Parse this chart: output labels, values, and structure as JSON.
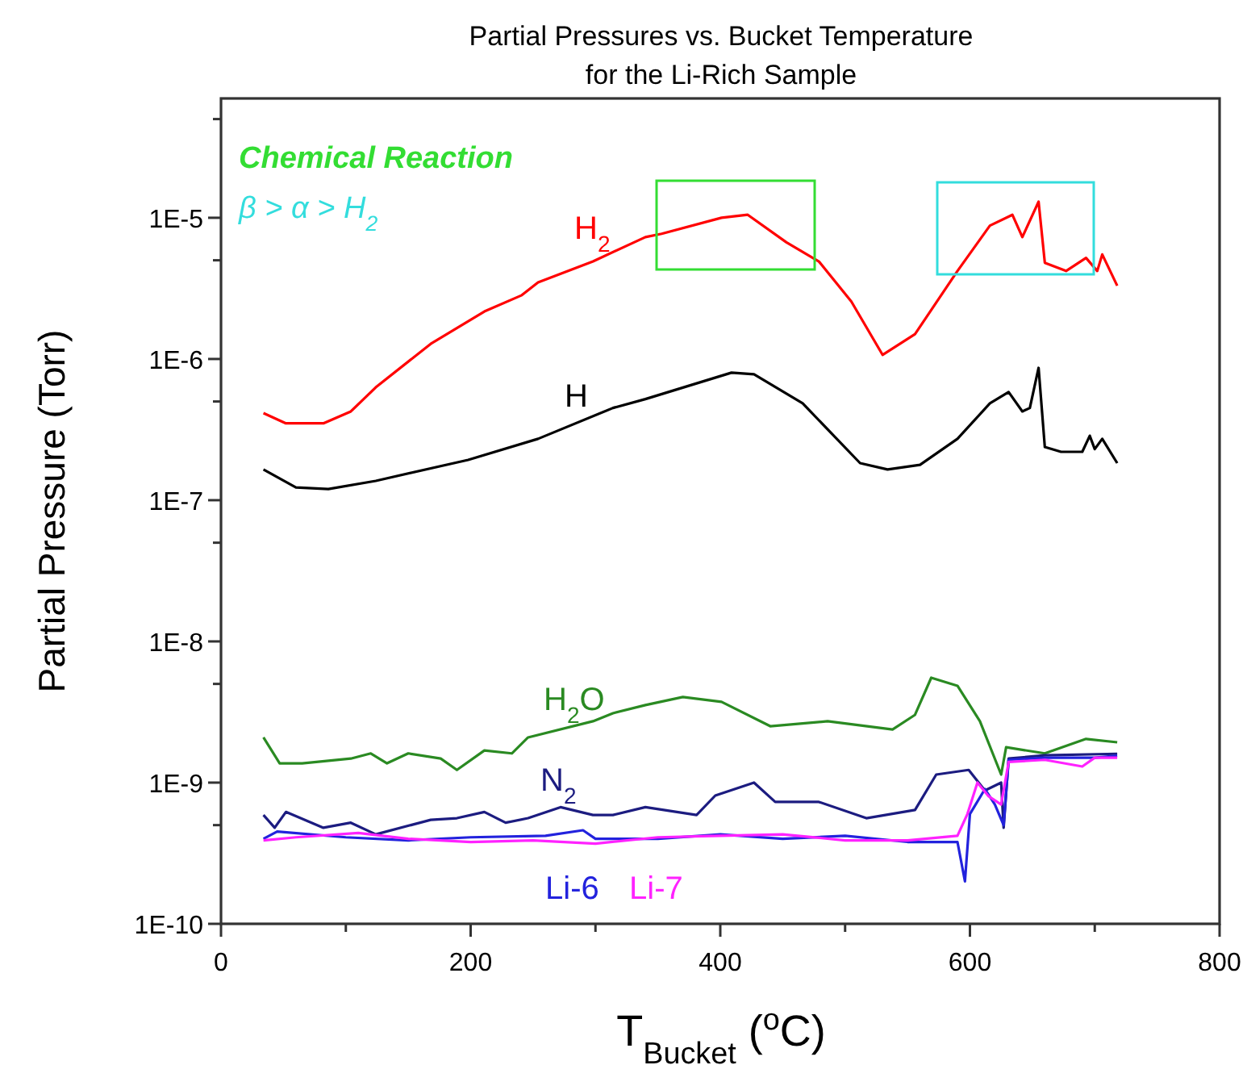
{
  "chart_data": {
    "type": "line",
    "title": "Partial Pressures vs. Bucket Temperature\nfor the Li-Rich Sample",
    "xlabel": "T$_{Bucket}$ ($^{o}$C)",
    "ylabel": "Partial Pressure (Torr)",
    "log": "y",
    "xlim": [
      0,
      800
    ],
    "xticks": [
      0,
      {
        "value": 100,
        "label": null
      },
      200,
      {
        "value": 300,
        "label": null
      },
      400,
      {
        "value": 500,
        "label": null
      },
      600,
      {
        "value": 700,
        "label": null
      },
      800
    ],
    "ylim": [
      1e-10,
      7e-05
    ],
    "yticks": [
      {
        "value": 1e-10,
        "label": "1E-10"
      },
      {
        "value": 5e-10,
        "label": null
      },
      {
        "value": 1e-09,
        "label": "1E-9"
      },
      {
        "value": 5e-09,
        "label": null
      },
      {
        "value": 1e-08,
        "label": "1E-8"
      },
      {
        "value": 5e-08,
        "label": null
      },
      {
        "value": 1e-07,
        "label": "1E-7"
      },
      {
        "value": 5e-07,
        "label": null
      },
      {
        "value": 1e-06,
        "label": "1E-6"
      },
      {
        "value": 5e-06,
        "label": null
      },
      {
        "value": 1e-05,
        "label": "1E-5"
      },
      {
        "value": 5e-05,
        "label": null
      }
    ],
    "annotations": [
      "Chemical Reaction",
      "β > α > H$_{2}$"
    ],
    "series": [
      {
        "name": "H$_{2}$",
        "color": "#ff0000",
        "x": [
          34,
          52,
          82,
          104,
          124,
          168,
          211,
          241,
          254,
          298,
          340,
          353,
          401,
          422,
          453,
          479,
          505,
          530,
          556,
          590,
          616,
          634,
          642,
          655,
          660,
          677,
          693,
          702,
          706,
          718
        ],
        "values": [
          4.14e-07,
          3.5e-07,
          3.5e-07,
          4.25e-07,
          6.3e-07,
          1.28e-06,
          2.17e-06,
          2.83e-06,
          3.49e-06,
          4.91e-06,
          7.3e-06,
          7.7e-06,
          1e-05,
          1.05e-05,
          6.7e-06,
          4.9e-06,
          2.55e-06,
          1.07e-06,
          1.5e-06,
          4.2e-06,
          8.8e-06,
          1.05e-05,
          7.3e-06,
          1.3e-05,
          4.8e-06,
          4.2e-06,
          5.2e-06,
          4.2e-06,
          5.5e-06,
          3.3e-06
        ]
      },
      {
        "name": "H",
        "color": "#000000",
        "x": [
          34,
          60,
          86,
          124,
          198,
          254,
          314,
          340,
          409,
          427,
          466,
          512,
          534,
          560,
          590,
          616,
          631,
          642,
          648,
          655,
          660,
          673,
          690,
          696,
          700,
          706,
          718
        ],
        "values": [
          1.65e-07,
          1.23e-07,
          1.2e-07,
          1.37e-07,
          1.93e-07,
          2.72e-07,
          4.5e-07,
          5.2e-07,
          8e-07,
          7.8e-07,
          4.85e-07,
          1.83e-07,
          1.65e-07,
          1.78e-07,
          2.72e-07,
          4.85e-07,
          5.83e-07,
          4.25e-07,
          4.5e-07,
          8.65e-07,
          2.38e-07,
          2.2e-07,
          2.2e-07,
          2.86e-07,
          2.3e-07,
          2.72e-07,
          1.83e-07
        ]
      },
      {
        "name": "H$_{2}$O",
        "color": "#2a8a22",
        "x": [
          34,
          47,
          65,
          104,
          120,
          133,
          150,
          176,
          189,
          211,
          233,
          246,
          298,
          314,
          340,
          370,
          401,
          440,
          486,
          538,
          556,
          569,
          590,
          608,
          625,
          629,
          660,
          693,
          718
        ],
        "values": [
          2.09e-09,
          1.37e-09,
          1.37e-09,
          1.48e-09,
          1.61e-09,
          1.37e-09,
          1.61e-09,
          1.48e-09,
          1.23e-09,
          1.69e-09,
          1.61e-09,
          2.09e-09,
          2.72e-09,
          3.1e-09,
          3.54e-09,
          4.04e-09,
          3.73e-09,
          2.51e-09,
          2.72e-09,
          2.38e-09,
          3.02e-09,
          5.53e-09,
          4.85e-09,
          2.72e-09,
          1.14e-09,
          1.78e-09,
          1.61e-09,
          2.04e-09,
          1.93e-09
        ]
      },
      {
        "name": "N$_{2}$",
        "color": "#1c1c80",
        "x": [
          34,
          43,
          52,
          82,
          104,
          124,
          168,
          189,
          211,
          228,
          246,
          272,
          298,
          314,
          340,
          381,
          396,
          427,
          444,
          479,
          517,
          556,
          573,
          599,
          612,
          625,
          627,
          631,
          660,
          718
        ],
        "values": [
          5.9e-10,
          4.79e-10,
          6.2e-10,
          4.79e-10,
          5.2e-10,
          4.3e-10,
          5.45e-10,
          5.6e-10,
          6.2e-10,
          5.2e-10,
          5.6e-10,
          6.7e-10,
          5.9e-10,
          5.9e-10,
          6.7e-10,
          5.9e-10,
          8.1e-10,
          1e-09,
          7.3e-10,
          7.3e-10,
          5.6e-10,
          6.4e-10,
          1.14e-09,
          1.23e-09,
          8.8e-10,
          1e-09,
          4.79e-10,
          1.48e-09,
          1.56e-09,
          1.6e-09
        ]
      },
      {
        "name": "Li-6",
        "color": "#2222dd",
        "x": [
          34,
          45,
          100,
          150,
          200,
          260,
          290,
          300,
          350,
          400,
          450,
          500,
          550,
          590,
          596,
          600,
          612,
          620,
          627,
          631,
          660,
          700,
          718
        ],
        "values": [
          4e-10,
          4.5e-10,
          4.1e-10,
          3.9e-10,
          4.1e-10,
          4.2e-10,
          4.6e-10,
          4e-10,
          4e-10,
          4.3e-10,
          4e-10,
          4.2e-10,
          3.8e-10,
          3.8e-10,
          2e-10,
          6e-10,
          9e-10,
          7e-10,
          5e-10,
          1.45e-09,
          1.5e-09,
          1.5e-09,
          1.55e-09
        ]
      },
      {
        "name": "Li-7",
        "color": "#ff22ff",
        "x": [
          34,
          60,
          110,
          150,
          200,
          250,
          300,
          350,
          400,
          450,
          500,
          550,
          590,
          598,
          606,
          615,
          625,
          631,
          660,
          690,
          700,
          718
        ],
        "values": [
          3.9e-10,
          4.1e-10,
          4.4e-10,
          4e-10,
          3.8e-10,
          3.9e-10,
          3.7e-10,
          4.1e-10,
          4.2e-10,
          4.3e-10,
          3.9e-10,
          3.9e-10,
          4.2e-10,
          6e-10,
          1e-09,
          8e-10,
          7e-10,
          1.4e-09,
          1.45e-09,
          1.3e-09,
          1.5e-09,
          1.5e-09
        ]
      }
    ]
  }
}
